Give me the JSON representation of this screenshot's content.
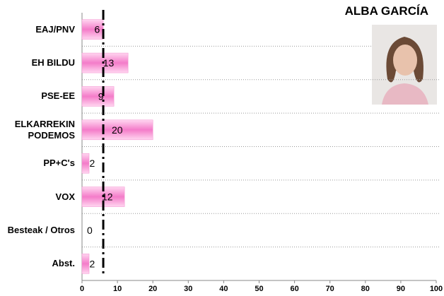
{
  "chart_data": {
    "type": "bar",
    "orientation": "horizontal",
    "title": "ALBA GARCÍA",
    "categories": [
      "EAJ/PNV",
      "EH BILDU",
      "PSE-EE",
      "ELKARREKIN PODEMOS",
      "PP+C's",
      "VOX",
      "Besteak / Otros",
      "Abst."
    ],
    "values": [
      6,
      13,
      9,
      20,
      2,
      12,
      0,
      2
    ],
    "color": "#f48fd0",
    "reference_line": 6,
    "xlim": [
      0,
      100
    ],
    "xticks": [
      0,
      10,
      20,
      30,
      40,
      50,
      60,
      70,
      80,
      90,
      100
    ]
  }
}
